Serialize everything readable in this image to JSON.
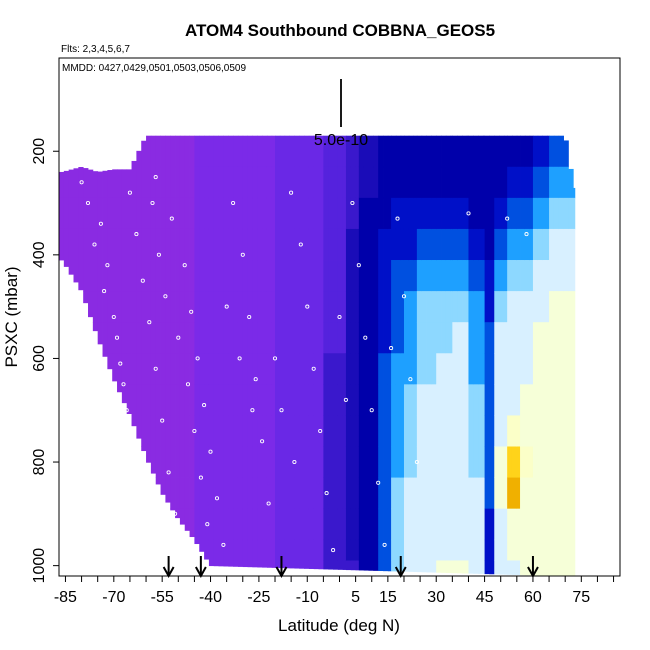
{
  "chart_data": {
    "type": "heatmap",
    "title": "ATOM4 Southbound COBBNA_GEOS5",
    "flights_note": "Flts: 2,3,4,5,6,7",
    "dates_note": "MMDD: 0427,0429,0501,0503,0506,0509",
    "xlabel": "Latitude (deg N)",
    "ylabel": "PSXC (mbar)",
    "xlim": [
      -87,
      87
    ],
    "ylim": [
      1020,
      20
    ],
    "x_ticks": [
      -85,
      -80,
      -75,
      -70,
      -65,
      -60,
      -55,
      -50,
      -45,
      -40,
      -35,
      -30,
      -25,
      -20,
      -15,
      -10,
      -5,
      0,
      5,
      10,
      15,
      20,
      25,
      30,
      35,
      40,
      45,
      50,
      55,
      60,
      65,
      70,
      75,
      80,
      85
    ],
    "x_tick_labels": [
      "-85",
      "-70",
      "-55",
      "-40",
      "-25",
      "-10",
      "5",
      "15",
      "30",
      "45",
      "60",
      "75"
    ],
    "x_tick_label_values": [
      -85,
      -70,
      -55,
      -40,
      -25,
      -10,
      5,
      15,
      30,
      45,
      60,
      75
    ],
    "y_ticks": [
      200,
      400,
      600,
      800,
      1000
    ],
    "y_tick_labels": [
      "200",
      "400",
      "600",
      "800",
      "1000"
    ],
    "scale_bar_label": "5.0e-10",
    "scale_bar_value": 5e-10,
    "grid": false,
    "legend": "none",
    "colormap": [
      "#8a2be2",
      "#7b2ae8",
      "#6a28e6",
      "#5522dd",
      "#3a18cc",
      "#1a0cb8",
      "#0000aa",
      "#0010c8",
      "#0050e0",
      "#1ea0ff",
      "#8dd8ff",
      "#d8f0ff",
      "#f6ffd8",
      "#fbffc8",
      "#ffd31a",
      "#f0b000"
    ],
    "profile_arrows_lat": [
      -53,
      -43,
      -18,
      19,
      60
    ],
    "data_coverage": [
      {
        "lat": -86,
        "p_top": 240,
        "p_bottom": 410
      },
      {
        "lat": -80,
        "p_top": 230,
        "p_bottom": 470
      },
      {
        "lat": -75,
        "p_top": 240,
        "p_bottom": 560
      },
      {
        "lat": -70,
        "p_top": 235,
        "p_bottom": 640
      },
      {
        "lat": -65,
        "p_top": 235,
        "p_bottom": 710
      },
      {
        "lat": -60,
        "p_top": 170,
        "p_bottom": 790
      },
      {
        "lat": -55,
        "p_top": 170,
        "p_bottom": 860
      },
      {
        "lat": -50,
        "p_top": 170,
        "p_bottom": 910
      },
      {
        "lat": -45,
        "p_top": 170,
        "p_bottom": 950
      },
      {
        "lat": -40,
        "p_top": 170,
        "p_bottom": 1000
      },
      {
        "lat": 70,
        "p_top": 170,
        "p_bottom": 1020
      },
      {
        "lat": 73,
        "p_top": 280,
        "p_bottom": 1020
      }
    ],
    "field_columns": [
      {
        "lat_start": -87,
        "lat_end": -45,
        "values": [
          0,
          0,
          0,
          0,
          0,
          0,
          0,
          0,
          0,
          0,
          0,
          0,
          0,
          0,
          0,
          0
        ]
      },
      {
        "lat_start": -45,
        "lat_end": -20,
        "values": [
          1,
          1,
          1,
          1,
          1,
          1,
          1,
          1,
          1,
          1,
          1,
          1,
          1,
          1,
          1,
          1
        ]
      },
      {
        "lat_start": -20,
        "lat_end": -5,
        "values": [
          2,
          2,
          2,
          2,
          2,
          2,
          2,
          2,
          2,
          2,
          2,
          2,
          2,
          2,
          2,
          2
        ]
      },
      {
        "lat_start": -5,
        "lat_end": 2,
        "values": [
          3,
          3,
          3,
          3,
          3,
          3,
          3,
          4,
          4,
          4,
          4,
          4,
          4,
          4,
          4,
          4
        ]
      },
      {
        "lat_start": 2,
        "lat_end": 6,
        "values": [
          4,
          4,
          4,
          5,
          5,
          5,
          5,
          5,
          5,
          5,
          5,
          5,
          5,
          5,
          4,
          4
        ]
      },
      {
        "lat_start": 6,
        "lat_end": 12,
        "values": [
          5,
          5,
          6,
          6,
          6,
          6,
          6,
          6,
          6,
          6,
          6,
          6,
          6,
          6,
          6,
          6
        ]
      },
      {
        "lat_start": 12,
        "lat_end": 16,
        "values": [
          6,
          6,
          6,
          7,
          7,
          7,
          7,
          8,
          8,
          8,
          8,
          8,
          8,
          8,
          8,
          8
        ]
      },
      {
        "lat_start": 16,
        "lat_end": 20,
        "values": [
          6,
          6,
          7,
          7,
          8,
          8,
          8,
          9,
          9,
          9,
          9,
          10,
          10,
          10,
          10,
          10
        ]
      },
      {
        "lat_start": 20,
        "lat_end": 24,
        "values": [
          6,
          6,
          7,
          7,
          8,
          9,
          9,
          9,
          10,
          10,
          10,
          11,
          11,
          11,
          11,
          11
        ]
      },
      {
        "lat_start": 24,
        "lat_end": 30,
        "values": [
          6,
          6,
          7,
          8,
          9,
          10,
          10,
          10,
          11,
          11,
          11,
          11,
          11,
          11,
          11,
          11
        ]
      },
      {
        "lat_start": 30,
        "lat_end": 35,
        "values": [
          6,
          6,
          7,
          8,
          9,
          10,
          10,
          11,
          11,
          11,
          11,
          11,
          11,
          11,
          12,
          12
        ]
      },
      {
        "lat_start": 35,
        "lat_end": 40,
        "values": [
          6,
          6,
          7,
          8,
          9,
          10,
          11,
          11,
          11,
          11,
          11,
          11,
          11,
          11,
          12,
          12
        ]
      },
      {
        "lat_start": 40,
        "lat_end": 45,
        "values": [
          6,
          6,
          6,
          7,
          8,
          9,
          9,
          9,
          10,
          10,
          10,
          11,
          11,
          11,
          11,
          11
        ]
      },
      {
        "lat_start": 45,
        "lat_end": 48,
        "values": [
          6,
          6,
          6,
          6,
          7,
          7,
          8,
          8,
          8,
          8,
          8,
          8,
          7,
          7,
          7,
          7
        ]
      },
      {
        "lat_start": 48,
        "lat_end": 52,
        "values": [
          6,
          6,
          7,
          8,
          9,
          10,
          11,
          11,
          11,
          11,
          12,
          12,
          11,
          11,
          11,
          11
        ]
      },
      {
        "lat_start": 52,
        "lat_end": 56,
        "values": [
          6,
          7,
          8,
          9,
          10,
          11,
          11,
          11,
          11,
          13,
          14,
          15,
          12,
          12,
          11,
          11
        ]
      },
      {
        "lat_start": 56,
        "lat_end": 60,
        "values": [
          6,
          7,
          8,
          9,
          10,
          11,
          11,
          11,
          12,
          12,
          13,
          12,
          12,
          12,
          12,
          12
        ]
      },
      {
        "lat_start": 60,
        "lat_end": 65,
        "values": [
          7,
          8,
          9,
          10,
          11,
          11,
          12,
          12,
          12,
          12,
          12,
          12,
          12,
          12,
          12,
          12
        ]
      },
      {
        "lat_start": 65,
        "lat_end": 73,
        "values": [
          8,
          9,
          10,
          11,
          11,
          12,
          12,
          12,
          12,
          12,
          12,
          12,
          12,
          12,
          12,
          12
        ]
      }
    ],
    "field_levels_mbar": [
      170,
      230,
      290,
      350,
      410,
      470,
      530,
      590,
      650,
      710,
      770,
      830,
      890,
      950,
      990,
      1020
    ],
    "observations": [
      {
        "lat": -78,
        "p": 300
      },
      {
        "lat": -74,
        "p": 340
      },
      {
        "lat": -72,
        "p": 420
      },
      {
        "lat": -70,
        "p": 520
      },
      {
        "lat": -68,
        "p": 610
      },
      {
        "lat": -66,
        "p": 700
      },
      {
        "lat": -64,
        "p": 780
      },
      {
        "lat": -62,
        "p": 860
      },
      {
        "lat": -60,
        "p": 940
      },
      {
        "lat": -65,
        "p": 280
      },
      {
        "lat": -63,
        "p": 360
      },
      {
        "lat": -61,
        "p": 450
      },
      {
        "lat": -59,
        "p": 530
      },
      {
        "lat": -57,
        "p": 620
      },
      {
        "lat": -55,
        "p": 720
      },
      {
        "lat": -53,
        "p": 820
      },
      {
        "lat": -51,
        "p": 900
      },
      {
        "lat": -49,
        "p": 980
      },
      {
        "lat": -57,
        "p": 250
      },
      {
        "lat": -52,
        "p": 330
      },
      {
        "lat": -48,
        "p": 420
      },
      {
        "lat": -46,
        "p": 510
      },
      {
        "lat": -44,
        "p": 600
      },
      {
        "lat": -42,
        "p": 690
      },
      {
        "lat": -40,
        "p": 780
      },
      {
        "lat": -38,
        "p": 870
      },
      {
        "lat": -36,
        "p": 960
      },
      {
        "lat": -33,
        "p": 300
      },
      {
        "lat": -30,
        "p": 400
      },
      {
        "lat": -28,
        "p": 520
      },
      {
        "lat": -26,
        "p": 640
      },
      {
        "lat": -24,
        "p": 760
      },
      {
        "lat": -22,
        "p": 880
      },
      {
        "lat": -15,
        "p": 280
      },
      {
        "lat": -12,
        "p": 380
      },
      {
        "lat": -10,
        "p": 500
      },
      {
        "lat": -8,
        "p": 620
      },
      {
        "lat": -6,
        "p": 740
      },
      {
        "lat": -4,
        "p": 860
      },
      {
        "lat": -2,
        "p": 970
      },
      {
        "lat": 4,
        "p": 300
      },
      {
        "lat": 6,
        "p": 420
      },
      {
        "lat": 8,
        "p": 560
      },
      {
        "lat": 10,
        "p": 700
      },
      {
        "lat": 12,
        "p": 840
      },
      {
        "lat": 14,
        "p": 960
      },
      {
        "lat": 18,
        "p": 330
      },
      {
        "lat": 20,
        "p": 480
      },
      {
        "lat": 22,
        "p": 640
      },
      {
        "lat": 24,
        "p": 800
      },
      {
        "lat": 40,
        "p": 320
      },
      {
        "lat": 52,
        "p": 330
      },
      {
        "lat": 58,
        "p": 360
      },
      {
        "lat": -80,
        "p": 260
      },
      {
        "lat": -76,
        "p": 380
      },
      {
        "lat": -73,
        "p": 470
      },
      {
        "lat": -69,
        "p": 560
      },
      {
        "lat": -67,
        "p": 650
      },
      {
        "lat": -64,
        "p": 740
      },
      {
        "lat": -58,
        "p": 300
      },
      {
        "lat": -56,
        "p": 400
      },
      {
        "lat": -54,
        "p": 480
      },
      {
        "lat": -50,
        "p": 560
      },
      {
        "lat": -47,
        "p": 650
      },
      {
        "lat": -45,
        "p": 740
      },
      {
        "lat": -43,
        "p": 830
      },
      {
        "lat": -41,
        "p": 920
      },
      {
        "lat": -35,
        "p": 500
      },
      {
        "lat": -31,
        "p": 600
      },
      {
        "lat": -27,
        "p": 700
      },
      {
        "lat": -20,
        "p": 600
      },
      {
        "lat": -18,
        "p": 700
      },
      {
        "lat": -14,
        "p": 800
      },
      {
        "lat": 0,
        "p": 520
      },
      {
        "lat": 2,
        "p": 680
      },
      {
        "lat": 16,
        "p": 580
      }
    ]
  }
}
